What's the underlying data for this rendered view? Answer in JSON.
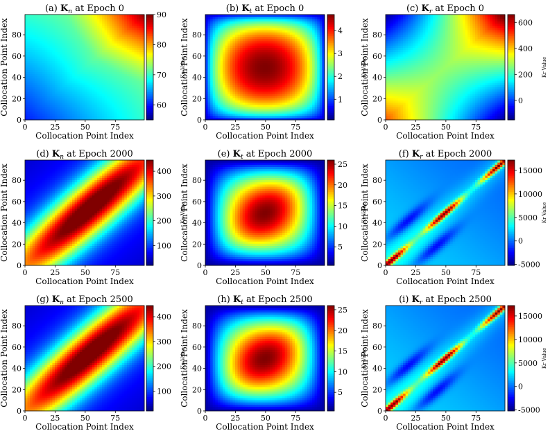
{
  "figure": {
    "colormap": "jet",
    "colors": {
      "jet_stops": [
        "#00007f",
        "#0000ff",
        "#007fff",
        "#00ffff",
        "#7fff7f",
        "#ffff00",
        "#ff7f00",
        "#ff0000",
        "#7f0000"
      ]
    }
  },
  "chart_data": [
    {
      "id": "a",
      "type": "heatmap",
      "title_prefix": "(a)",
      "symbol": "K",
      "subscript": "n",
      "title_suffix": "at Epoch 0",
      "xlabel": "Collocation Point Index",
      "ylabel": "Collocation Point Index",
      "xlim": [
        0,
        99
      ],
      "ylim": [
        0,
        99
      ],
      "xticks": [
        0,
        25,
        50,
        75
      ],
      "yticks": [
        0,
        20,
        40,
        60,
        80
      ],
      "colorbar_label": "Kn Value",
      "color_range": [
        55,
        90
      ],
      "colorbar_ticks": [
        60,
        70,
        80,
        90
      ],
      "pattern": "kn0"
    },
    {
      "id": "b",
      "type": "heatmap",
      "title_prefix": "(b)",
      "symbol": "K",
      "subscript": "t",
      "title_suffix": "at Epoch 0",
      "xlabel": "Collocation Point Index",
      "ylabel": "Collocation Point Index",
      "xlim": [
        0,
        99
      ],
      "ylim": [
        0,
        99
      ],
      "xticks": [
        0,
        25,
        50,
        75
      ],
      "yticks": [
        0,
        20,
        40,
        60,
        80
      ],
      "colorbar_label": "Kt Value",
      "color_range": [
        0.1,
        4.7
      ],
      "colorbar_ticks": [
        1,
        2,
        3,
        4
      ],
      "pattern": "kt0"
    },
    {
      "id": "c",
      "type": "heatmap",
      "title_prefix": "(c)",
      "symbol": "K",
      "subscript": "r",
      "title_suffix": "at Epoch 0",
      "xlabel": "Collocation Point Index",
      "ylabel": "Collocation Point Index",
      "xlim": [
        0,
        99
      ],
      "ylim": [
        0,
        99
      ],
      "xticks": [
        0,
        25,
        50,
        75
      ],
      "yticks": [
        0,
        20,
        40,
        60,
        80
      ],
      "colorbar_label": "Kr Value",
      "color_range": [
        -150,
        660
      ],
      "colorbar_ticks": [
        0,
        200,
        400,
        600
      ],
      "pattern": "kr0"
    },
    {
      "id": "d",
      "type": "heatmap",
      "title_prefix": "(d)",
      "symbol": "K",
      "subscript": "n",
      "title_suffix": "at Epoch 2000",
      "xlabel": "Collocation Point Index",
      "ylabel": "Collocation Point Index",
      "xlim": [
        0,
        99
      ],
      "ylim": [
        0,
        99
      ],
      "xticks": [
        0,
        25,
        50,
        75
      ],
      "yticks": [
        0,
        20,
        40,
        60,
        80
      ],
      "colorbar_label": "Kn Value",
      "color_range": [
        20,
        445
      ],
      "colorbar_ticks": [
        100,
        200,
        300,
        400
      ],
      "pattern": "kn"
    },
    {
      "id": "e",
      "type": "heatmap",
      "title_prefix": "(e)",
      "symbol": "K",
      "subscript": "t",
      "title_suffix": "at Epoch 2000",
      "xlabel": "Collocation Point Index",
      "ylabel": "Collocation Point Index",
      "xlim": [
        0,
        99
      ],
      "ylim": [
        0,
        99
      ],
      "xticks": [
        0,
        25,
        50,
        75
      ],
      "yticks": [
        0,
        20,
        40,
        60,
        80
      ],
      "colorbar_label": "Kt Value",
      "color_range": [
        0.5,
        26
      ],
      "colorbar_ticks": [
        5,
        10,
        15,
        20,
        25
      ],
      "pattern": "kt"
    },
    {
      "id": "f",
      "type": "heatmap",
      "title_prefix": "(f)",
      "symbol": "K",
      "subscript": "r",
      "title_suffix": "at Epoch 2000",
      "xlabel": "Collocation Point Index",
      "ylabel": "Collocation Point Index",
      "xlim": [
        0,
        99
      ],
      "ylim": [
        0,
        99
      ],
      "xticks": [
        0,
        25,
        50,
        75
      ],
      "yticks": [
        0,
        20,
        40,
        60,
        80
      ],
      "colorbar_label": "Kr Value",
      "color_range": [
        -5200,
        17200
      ],
      "colorbar_ticks": [
        -5000,
        0,
        5000,
        10000,
        15000
      ],
      "pattern": "kr"
    },
    {
      "id": "g",
      "type": "heatmap",
      "title_prefix": "(g)",
      "symbol": "K",
      "subscript": "n",
      "title_suffix": "at Epoch 2500",
      "xlabel": "Collocation Point Index",
      "ylabel": "Collocation Point Index",
      "xlim": [
        0,
        99
      ],
      "ylim": [
        0,
        99
      ],
      "xticks": [
        0,
        25,
        50,
        75
      ],
      "yticks": [
        0,
        20,
        40,
        60,
        80
      ],
      "colorbar_label": "Kn Value",
      "color_range": [
        20,
        445
      ],
      "colorbar_ticks": [
        100,
        200,
        300,
        400
      ],
      "pattern": "kn"
    },
    {
      "id": "h",
      "type": "heatmap",
      "title_prefix": "(h)",
      "symbol": "K",
      "subscript": "t",
      "title_suffix": "at Epoch 2500",
      "xlabel": "Collocation Point Index",
      "ylabel": "Collocation Point Index",
      "xlim": [
        0,
        99
      ],
      "ylim": [
        0,
        99
      ],
      "xticks": [
        0,
        25,
        50,
        75
      ],
      "yticks": [
        0,
        20,
        40,
        60,
        80
      ],
      "colorbar_label": "Kt Value",
      "color_range": [
        0.5,
        26
      ],
      "colorbar_ticks": [
        5,
        10,
        15,
        20,
        25
      ],
      "pattern": "kt"
    },
    {
      "id": "i",
      "type": "heatmap",
      "title_prefix": "(i)",
      "symbol": "K",
      "subscript": "r",
      "title_suffix": "at Epoch 2500",
      "xlabel": "Collocation Point Index",
      "ylabel": "Collocation Point Index",
      "xlim": [
        0,
        99
      ],
      "ylim": [
        0,
        99
      ],
      "xticks": [
        0,
        25,
        50,
        75
      ],
      "yticks": [
        0,
        20,
        40,
        60,
        80
      ],
      "colorbar_label": "Kr Value",
      "color_range": [
        -5200,
        17200
      ],
      "colorbar_ticks": [
        -5000,
        0,
        5000,
        10000,
        15000
      ],
      "pattern": "kr"
    }
  ]
}
